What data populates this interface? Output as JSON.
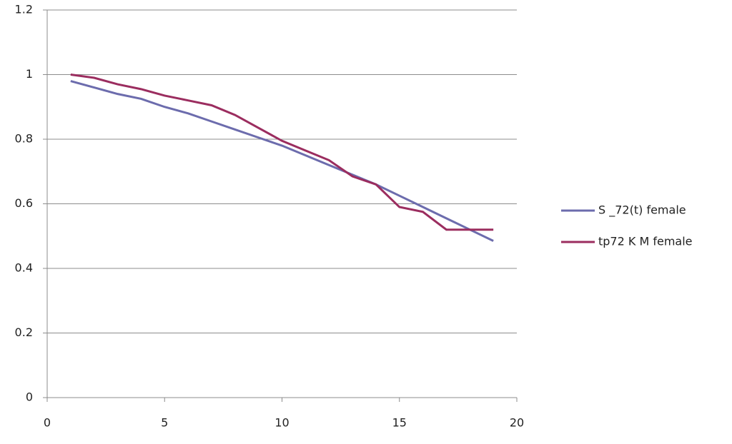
{
  "chart_data": {
    "type": "line",
    "x": [
      1,
      2,
      3,
      4,
      5,
      6,
      7,
      8,
      9,
      10,
      11,
      12,
      13,
      14,
      15,
      16,
      17,
      18,
      19
    ],
    "series": [
      {
        "name": "S _72(t) female",
        "color": "#6c6cad",
        "values": [
          0.98,
          0.96,
          0.94,
          0.925,
          0.9,
          0.88,
          0.855,
          0.83,
          0.805,
          0.78,
          0.75,
          0.72,
          0.69,
          0.66,
          0.625,
          0.59,
          0.555,
          0.52,
          0.485
        ]
      },
      {
        "name": "tp72 K M female",
        "color": "#9b2d5f",
        "values": [
          1.0,
          0.99,
          0.97,
          0.955,
          0.935,
          0.92,
          0.905,
          0.875,
          0.835,
          0.795,
          0.765,
          0.735,
          0.685,
          0.66,
          0.59,
          0.575,
          0.52,
          0.52,
          0.52
        ]
      }
    ],
    "xlim": [
      0,
      20
    ],
    "xticks": [
      0,
      5,
      10,
      15,
      20
    ],
    "ylim": [
      0,
      1.2
    ],
    "yticks": [
      0,
      0.2,
      0.4,
      0.6,
      0.8,
      1,
      1.2
    ],
    "grid": true,
    "legend": "right"
  }
}
